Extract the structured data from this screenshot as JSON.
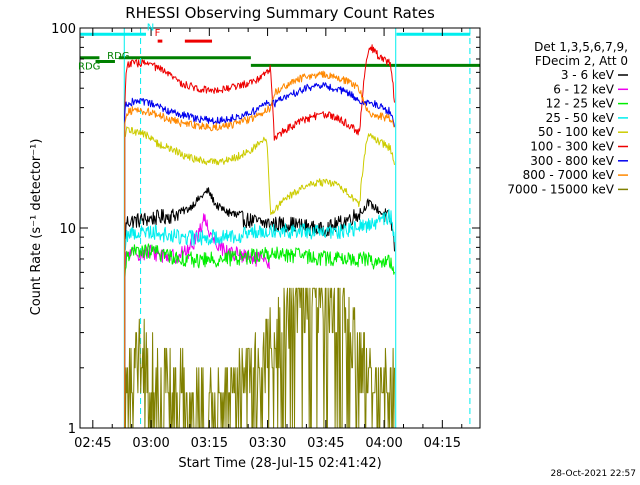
{
  "chart_data": {
    "type": "line",
    "title": "RHESSI Observing Summary Count Rates",
    "xlabel": "Start Time (28-Jul-15 02:41:42)",
    "ylabel": "Count Rate (s⁻¹ detector⁻¹)",
    "yscale": "log",
    "ylim": [
      1,
      100
    ],
    "xlim_minutes": [
      0,
      103
    ],
    "x_ticks": [
      {
        "label": "02:45",
        "t": 3.3
      },
      {
        "label": "03:00",
        "t": 18.3
      },
      {
        "label": "03:15",
        "t": 33.3
      },
      {
        "label": "03:30",
        "t": 48.3
      },
      {
        "label": "03:45",
        "t": 63.3
      },
      {
        "label": "04:00",
        "t": 78.3
      },
      {
        "label": "04:15",
        "t": 93.3
      }
    ],
    "y_ticks": [
      {
        "label": "1",
        "v": 1
      },
      {
        "label": "10",
        "v": 10
      },
      {
        "label": "100",
        "v": 100
      }
    ],
    "legend_header": [
      "Det 1,3,5,6,7,9,",
      "FDecim 2, Att 0"
    ],
    "series": [
      {
        "name": "3 - 6 keV",
        "color": "#000000",
        "x": [
          11.5,
          12,
          16,
          20,
          24,
          28,
          31,
          33,
          35,
          38,
          42,
          46,
          49,
          50,
          54,
          58,
          62,
          65,
          68,
          71,
          73,
          74,
          76,
          78,
          80,
          81
        ],
        "values": [
          8.5,
          10.8,
          11,
          11.3,
          11.6,
          12.5,
          14.2,
          15.4,
          13,
          12,
          11.1,
          10.7,
          10.5,
          10.5,
          10.5,
          10.2,
          9.8,
          10.2,
          10.8,
          11.6,
          12.2,
          13.5,
          12.6,
          11.8,
          11,
          8
        ]
      },
      {
        "name": "6 - 12 keV",
        "color": "#ee00ee",
        "x": [
          11.5,
          12,
          18,
          24,
          28,
          30,
          32,
          34,
          37,
          42,
          47,
          49
        ],
        "values": [
          6,
          7.4,
          7.6,
          7.2,
          7.7,
          9,
          11.2,
          9,
          7.8,
          7.2,
          6.9,
          6.5
        ]
      },
      {
        "name": "12 - 25 keV",
        "color": "#00ee00",
        "x": [
          11.5,
          12,
          18,
          24,
          30,
          36,
          42,
          48,
          50,
          56,
          62,
          68,
          74,
          76,
          80,
          81
        ],
        "values": [
          5,
          7.5,
          7.7,
          7.2,
          6.9,
          7,
          7.2,
          7.4,
          7.4,
          7.3,
          7.1,
          7,
          7,
          6.8,
          6.7,
          6
        ]
      },
      {
        "name": "25 - 50 keV",
        "color": "#00eeee",
        "x": [
          11.5,
          12,
          18,
          24,
          30,
          36,
          42,
          48,
          50,
          56,
          62,
          68,
          72,
          76,
          80,
          81
        ],
        "values": [
          8,
          9.3,
          9.7,
          9.1,
          8.9,
          9.1,
          9.3,
          9.9,
          9.8,
          9.7,
          9.5,
          9.6,
          10.1,
          10.7,
          11.5,
          9
        ]
      },
      {
        "name": "50 - 100 keV",
        "color": "#cccc00",
        "x": [
          11.5,
          12,
          16,
          20,
          24,
          28,
          32,
          36,
          40,
          44,
          48,
          49,
          50,
          54,
          58,
          62,
          66,
          70,
          72,
          74,
          76,
          80,
          81
        ],
        "values": [
          28,
          31,
          30,
          26.5,
          24.5,
          22.5,
          21.5,
          21.5,
          22.5,
          24.5,
          28,
          12,
          12.2,
          14.5,
          16.2,
          17,
          16.5,
          14.5,
          13,
          29,
          28,
          25,
          20
        ]
      },
      {
        "name": "100 - 300 keV",
        "color": "#ee0000",
        "x": [
          11.5,
          12,
          14,
          18,
          22,
          26,
          30,
          34,
          38,
          42,
          46,
          49,
          50,
          54,
          58,
          62,
          66,
          70,
          72,
          74,
          75,
          77,
          80,
          81
        ],
        "values": [
          40,
          65,
          67,
          66,
          60,
          53,
          50,
          49,
          50,
          52,
          56,
          63,
          28,
          32,
          35,
          37,
          36,
          32,
          30,
          73,
          80,
          72,
          66,
          42
        ]
      },
      {
        "name": "300 - 800 keV",
        "color": "#0000ee",
        "x": [
          11.5,
          12,
          14,
          18,
          22,
          26,
          30,
          34,
          38,
          42,
          46,
          49,
          50,
          54,
          58,
          62,
          66,
          70,
          72,
          74,
          76,
          80,
          81
        ],
        "values": [
          38,
          42,
          43,
          42,
          39,
          37,
          35,
          34.5,
          35,
          36.5,
          39.5,
          43,
          42,
          46,
          50,
          51.5,
          50,
          46,
          43,
          43,
          41.5,
          38,
          33
        ]
      },
      {
        "name": "800 - 7000 keV",
        "color": "#ff8800",
        "x": [
          11.5,
          12,
          14,
          18,
          22,
          26,
          30,
          34,
          38,
          42,
          46,
          49,
          50,
          54,
          58,
          62,
          66,
          70,
          72,
          74,
          76,
          80,
          81
        ],
        "values": [
          34,
          38,
          39,
          38,
          35.5,
          33.5,
          32.5,
          32,
          32.5,
          34,
          36.5,
          40,
          47,
          53,
          57,
          58.5,
          57,
          53,
          49,
          38,
          37,
          35,
          31
        ]
      },
      {
        "name": "7000 - 15000 keV",
        "color": "#808000",
        "x": [
          11.5,
          12,
          16,
          19,
          28,
          32,
          38,
          44,
          47,
          49,
          52,
          54,
          58,
          62,
          65,
          68,
          70,
          72,
          74,
          76,
          78,
          79,
          80,
          81
        ],
        "values": [
          1,
          2,
          2.5,
          2,
          1.5,
          1.5,
          1.5,
          2,
          2.5,
          3,
          3.8,
          4.5,
          5,
          5,
          4.5,
          4,
          3,
          2.5,
          2,
          1.5,
          1.5,
          2,
          2.5,
          1.5
        ]
      }
    ],
    "annotations": [
      {
        "label": "N",
        "t": 17.2,
        "v": 97,
        "color": "#00eeee"
      },
      {
        "label": "F",
        "t": 19.2,
        "v": 91,
        "color": "#ee0000"
      },
      {
        "label": "RDG",
        "t": 7.5,
        "v": 70,
        "color": "#008000"
      },
      {
        "label": "RDG",
        "t": 0,
        "v": 62,
        "color": "#008000"
      }
    ],
    "status_bars": [
      {
        "kind": "night",
        "color": "#00eeee",
        "v": 93,
        "ranges": [
          [
            0,
            17
          ],
          [
            81.5,
            100.5
          ]
        ]
      },
      {
        "kind": "flare",
        "color": "#ee0000",
        "v": 86,
        "ranges": [
          [
            20,
            21.2
          ],
          [
            27,
            34
          ]
        ]
      },
      {
        "kind": "saa",
        "color": "#008000",
        "v": 71,
        "ranges": [
          [
            0,
            5
          ],
          [
            10,
            44
          ]
        ]
      },
      {
        "kind": "saa",
        "color": "#008000",
        "v": 68,
        "ranges": [
          [
            4,
            9
          ]
        ]
      },
      {
        "kind": "saa",
        "color": "#008000",
        "v": 65,
        "ranges": [
          [
            44,
            73
          ],
          [
            73,
            103
          ]
        ]
      }
    ],
    "vlines": [
      {
        "t": 11.4,
        "color": "#00eeee",
        "style": "solid"
      },
      {
        "t": 15.6,
        "color": "#00eeee",
        "style": "dashed"
      },
      {
        "t": 81.3,
        "color": "#00eeee",
        "style": "solid"
      },
      {
        "t": 100.4,
        "color": "#00eeee",
        "style": "dashed"
      }
    ]
  },
  "footer": {
    "timestamp": "28-Oct-2021 22:57"
  }
}
